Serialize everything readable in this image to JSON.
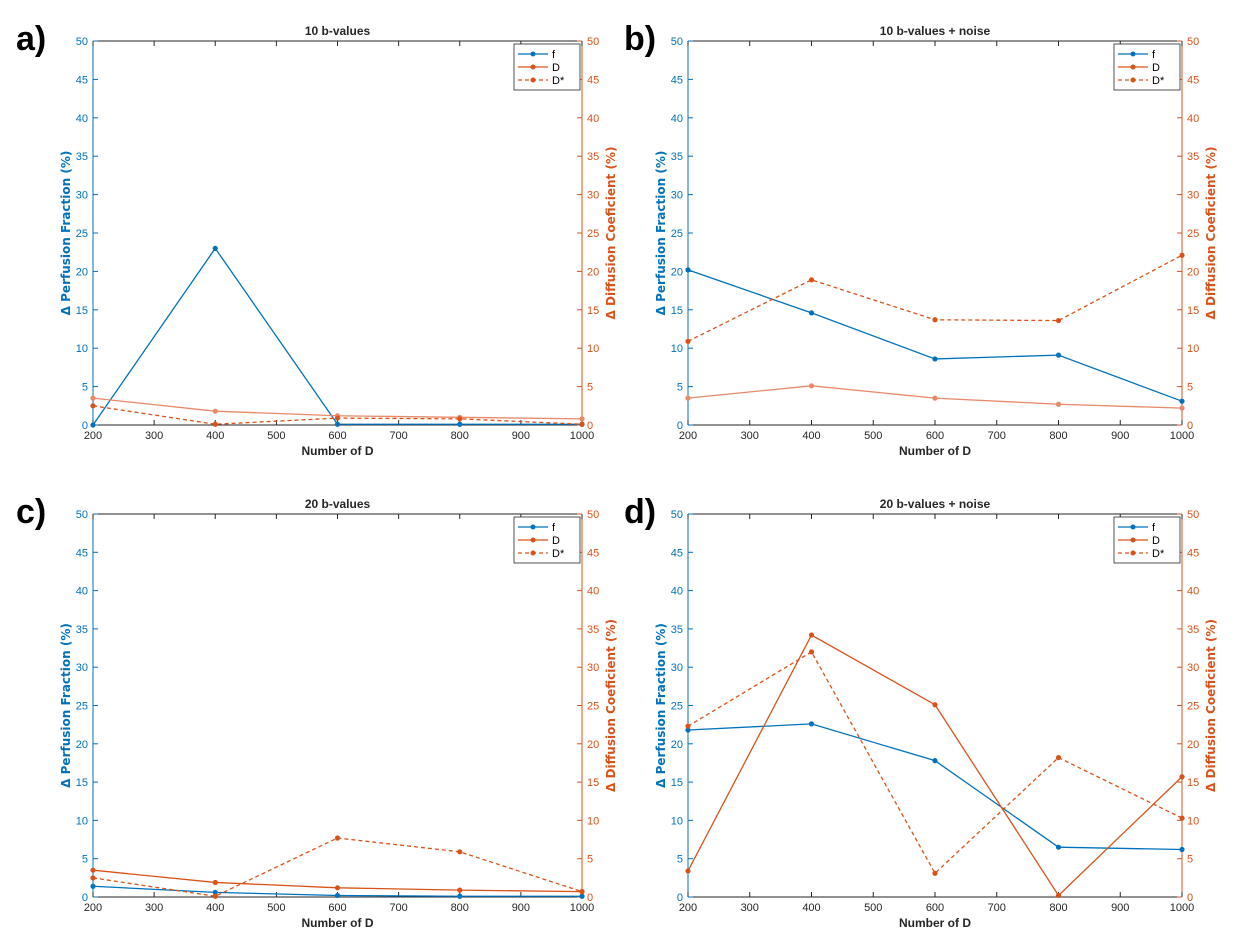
{
  "colors": {
    "f": "#0072BD",
    "D": "#D95319",
    "D_light": "#E8896A",
    "axis": "#262626"
  },
  "chart_data": [
    {
      "type": "line",
      "panel_label": "a)",
      "title": "10 b-values",
      "xlabel": "Number of D",
      "ylabel_left": "Δ Perfusion Fraction (%)",
      "ylabel_right": "Δ Diffusion Coeficient (%)",
      "x": [
        200,
        400,
        600,
        800,
        1000
      ],
      "xticks": [
        "200",
        "300",
        "400",
        "500",
        "600",
        "700",
        "800",
        "900",
        "1000"
      ],
      "yticks": [
        "0",
        "5",
        "10",
        "15",
        "20",
        "25",
        "30",
        "35",
        "40",
        "45",
        "50"
      ],
      "xlim": [
        200,
        1000
      ],
      "ylim": [
        0,
        50
      ],
      "legend": [
        "f",
        "D",
        "D*"
      ],
      "series": [
        {
          "name": "f",
          "axis": "left",
          "style": "solid",
          "values": [
            0,
            23,
            0.1,
            0.1,
            0.1
          ]
        },
        {
          "name": "D",
          "axis": "right",
          "style": "solid",
          "values": [
            3.5,
            1.8,
            1.2,
            1.0,
            0.8
          ]
        },
        {
          "name": "D*",
          "axis": "right",
          "style": "dashed",
          "values": [
            2.5,
            0.1,
            0.9,
            0.8,
            0.1
          ]
        }
      ]
    },
    {
      "type": "line",
      "panel_label": "b)",
      "title": "10 b-values + noise",
      "xlabel": "Number of D",
      "ylabel_left": "Δ Perfusion Fraction (%)",
      "ylabel_right": "Δ Diffusion Coeficient (%)",
      "x": [
        200,
        400,
        600,
        800,
        1000
      ],
      "xticks": [
        "200",
        "300",
        "400",
        "500",
        "600",
        "700",
        "800",
        "900",
        "1000"
      ],
      "yticks": [
        "0",
        "5",
        "10",
        "15",
        "20",
        "25",
        "30",
        "35",
        "40",
        "45",
        "50"
      ],
      "xlim": [
        200,
        1000
      ],
      "ylim": [
        0,
        50
      ],
      "legend": [
        "f",
        "D",
        "D*"
      ],
      "series": [
        {
          "name": "f",
          "axis": "left",
          "style": "solid",
          "values": [
            20.2,
            14.6,
            8.6,
            9.1,
            3.1
          ]
        },
        {
          "name": "D",
          "axis": "right",
          "style": "solid",
          "values": [
            3.5,
            5.1,
            3.5,
            2.7,
            2.2
          ]
        },
        {
          "name": "D*",
          "axis": "right",
          "style": "dashed",
          "values": [
            10.9,
            18.9,
            13.7,
            13.6,
            22.1
          ]
        }
      ]
    },
    {
      "type": "line",
      "panel_label": "c)",
      "title": "20 b-values",
      "xlabel": "Number of D",
      "ylabel_left": "Δ Perfusion Fraction (%)",
      "ylabel_right": "Δ Diffusion Coeficient (%)",
      "x": [
        200,
        400,
        600,
        800,
        1000
      ],
      "xticks": [
        "200",
        "300",
        "400",
        "500",
        "600",
        "700",
        "800",
        "900",
        "1000"
      ],
      "yticks": [
        "0",
        "5",
        "10",
        "15",
        "20",
        "25",
        "30",
        "35",
        "40",
        "45",
        "50"
      ],
      "xlim": [
        200,
        1000
      ],
      "ylim": [
        0,
        50
      ],
      "legend": [
        "f",
        "D",
        "D*"
      ],
      "series": [
        {
          "name": "f",
          "axis": "left",
          "style": "solid",
          "values": [
            1.4,
            0.6,
            0.2,
            0.1,
            0.1
          ]
        },
        {
          "name": "D",
          "axis": "right",
          "style": "solid",
          "values": [
            3.5,
            1.9,
            1.2,
            0.9,
            0.7
          ]
        },
        {
          "name": "D*",
          "axis": "right",
          "style": "dashed",
          "values": [
            2.5,
            0.1,
            7.7,
            5.9,
            0.7
          ]
        }
      ]
    },
    {
      "type": "line",
      "panel_label": "d)",
      "title": "20 b-values + noise",
      "xlabel": "Number of D",
      "ylabel_left": "Δ Perfusion Fraction (%)",
      "ylabel_right": "Δ Diffusion Coeficient (%)",
      "x": [
        200,
        400,
        600,
        800,
        1000
      ],
      "xticks": [
        "200",
        "300",
        "400",
        "500",
        "600",
        "700",
        "800",
        "900",
        "1000"
      ],
      "yticks": [
        "0",
        "5",
        "10",
        "15",
        "20",
        "25",
        "30",
        "35",
        "40",
        "45",
        "50"
      ],
      "xlim": [
        200,
        1000
      ],
      "ylim": [
        0,
        50
      ],
      "legend": [
        "f",
        "D",
        "D*"
      ],
      "series": [
        {
          "name": "f",
          "axis": "left",
          "style": "solid",
          "values": [
            21.8,
            22.6,
            17.8,
            6.5,
            6.2
          ]
        },
        {
          "name": "D",
          "axis": "right",
          "style": "solid",
          "values": [
            3.4,
            34.2,
            25.1,
            0.2,
            15.7
          ]
        },
        {
          "name": "D*",
          "axis": "right",
          "style": "dashed",
          "values": [
            22.3,
            32.0,
            3.1,
            18.2,
            10.3
          ]
        }
      ]
    }
  ]
}
